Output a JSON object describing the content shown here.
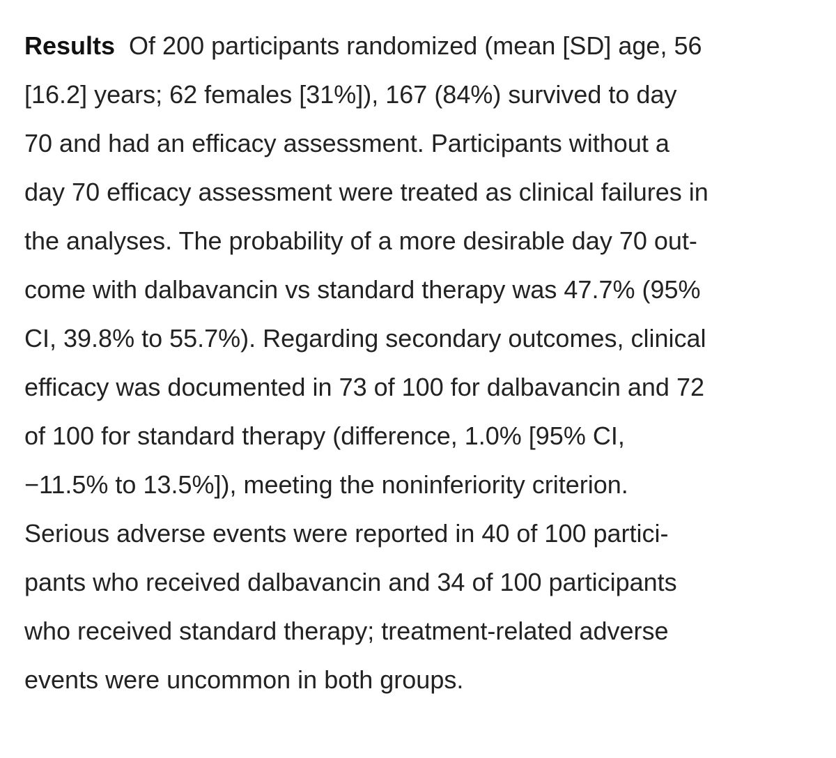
{
  "section": {
    "heading": "Results",
    "lines": [
      "Of 200 participants randomized (mean [SD] age, 56",
      "[16.2] years; 62 females [31%]), 167 (84%) survived to day",
      "70 and had an efficacy assessment. Participants without a",
      "day 70 efficacy assessment were treated as clinical failures in",
      "the analyses. The probability of a more desirable day 70 out-",
      "come with dalbavancin vs standard therapy was 47.7% (95%",
      "CI, 39.8% to 55.7%). Regarding secondary outcomes, clinical",
      "efficacy was documented in 73 of 100 for dalbavancin and 72",
      "of 100 for standard therapy (difference, 1.0% [95% CI,",
      "−11.5% to 13.5%]), meeting the noninferiority criterion.",
      "Serious adverse events were reported in 40 of 100 partici-",
      "pants who received dalbavancin and 34 of 100 participants",
      "who received standard therapy; treatment-related adverse",
      "events were uncommon in both groups."
    ]
  }
}
